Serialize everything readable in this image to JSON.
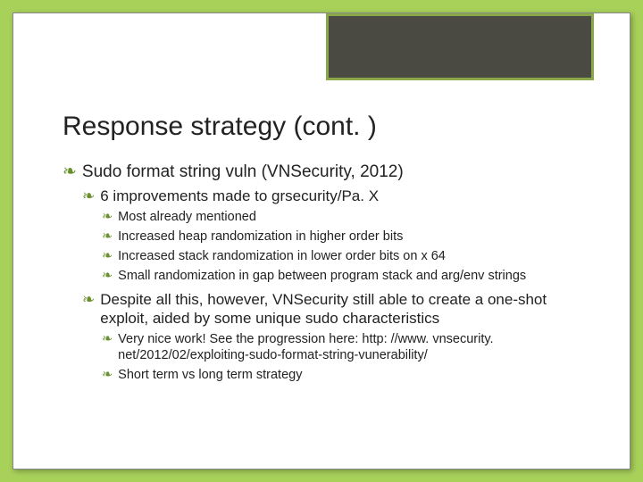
{
  "colors": {
    "slide_background": "#a8d15a",
    "card_background": "#ffffff",
    "corner_box_fill": "#4a4a42",
    "corner_box_border": "#8aa84a",
    "bullet_icon": "#6a8f2f",
    "text": "#222222"
  },
  "title": "Response strategy (cont. )",
  "bullets": {
    "b1": "Sudo format string vuln (VNSecurity, 2012)",
    "b1_1": "6 improvements made to grsecurity/Pa. X",
    "b1_1_1": "Most already mentioned",
    "b1_1_2": "Increased heap randomization in higher order bits",
    "b1_1_3": "Increased stack randomization in lower order bits on x 64",
    "b1_1_4": "Small randomization in gap between program stack and arg/env strings",
    "b1_2": "Despite all this, however, VNSecurity still able to create a one-shot exploit, aided by some unique sudo characteristics",
    "b1_2_1": "Very nice work!  See the progression here: http: //www. vnsecurity. net/2012/02/exploiting-sudo-format-string-vunerability/",
    "b1_2_2": "Short term vs long term strategy"
  },
  "bullet_glyph": "❧"
}
